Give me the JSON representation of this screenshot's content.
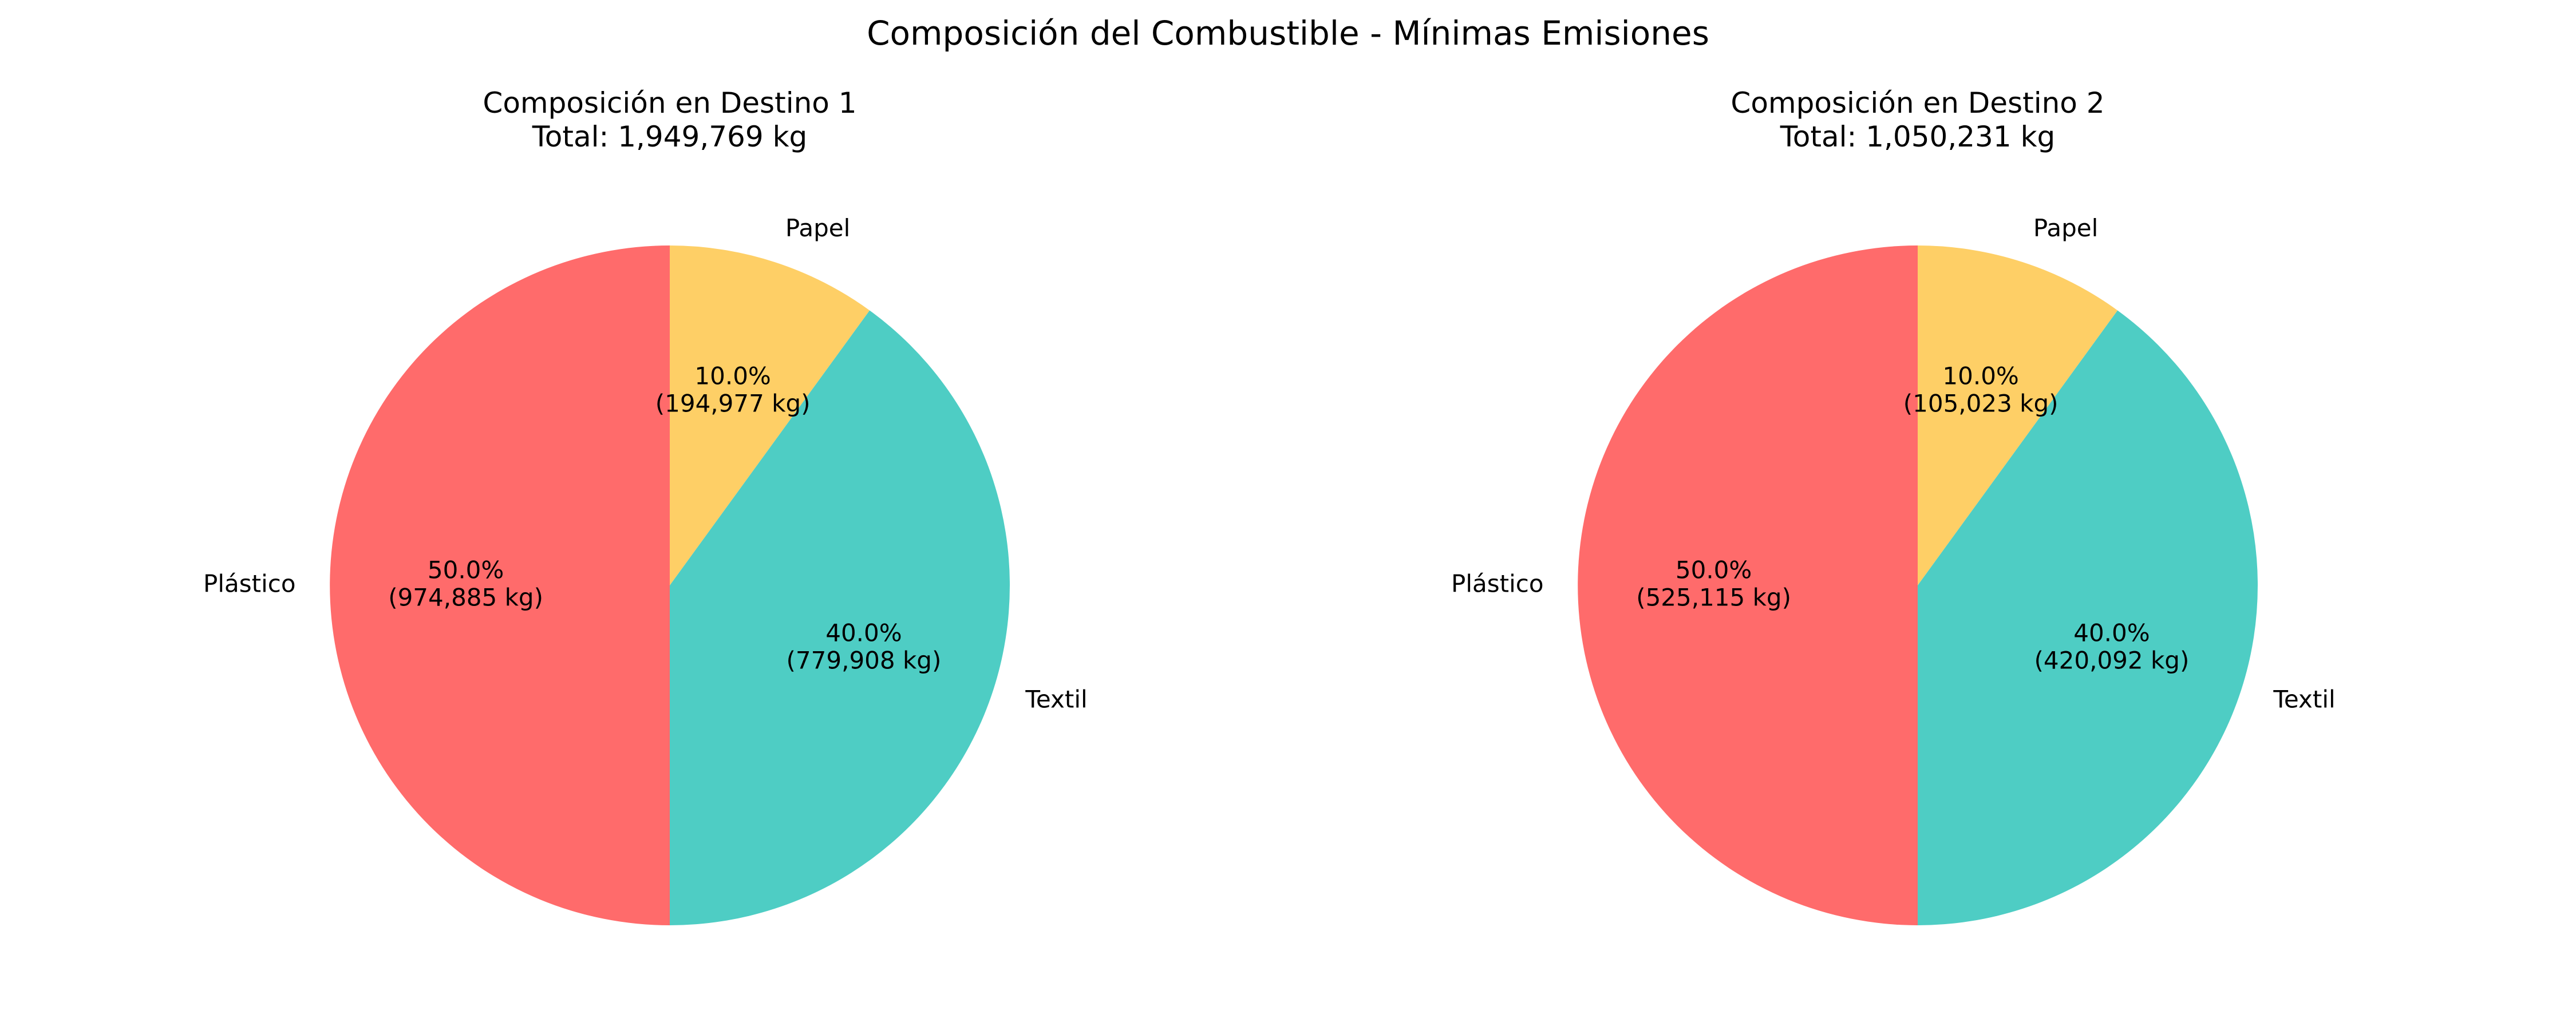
{
  "figure": {
    "title": "Composición del Combustible - Mínimas Emisiones"
  },
  "chart_data": [
    {
      "type": "pie",
      "title": "Composición en Destino 1",
      "subtitle": "Total: 1,949,769 kg",
      "categories": [
        "Papel",
        "Textil",
        "Plástico"
      ],
      "values": [
        194977,
        779908,
        974885
      ],
      "percent_labels": [
        "10.0%",
        "40.0%",
        "50.0%"
      ],
      "value_labels": [
        "(194,977 kg)",
        "(779,908 kg)",
        "(974,885 kg)"
      ],
      "colors": [
        "#FECF66",
        "#4ECDC4",
        "#FF6B6B"
      ],
      "start_angle_deg": 90,
      "direction": "clockwise",
      "legend": "none"
    },
    {
      "type": "pie",
      "title": "Composición en Destino 2",
      "subtitle": "Total: 1,050,231 kg",
      "categories": [
        "Papel",
        "Textil",
        "Plástico"
      ],
      "values": [
        105023,
        420092,
        525115
      ],
      "percent_labels": [
        "10.0%",
        "40.0%",
        "50.0%"
      ],
      "value_labels": [
        "(105,023 kg)",
        "(420,092 kg)",
        "(525,115 kg)"
      ],
      "colors": [
        "#FECF66",
        "#4ECDC4",
        "#FF6B6B"
      ],
      "start_angle_deg": 90,
      "direction": "clockwise",
      "legend": "none"
    }
  ]
}
